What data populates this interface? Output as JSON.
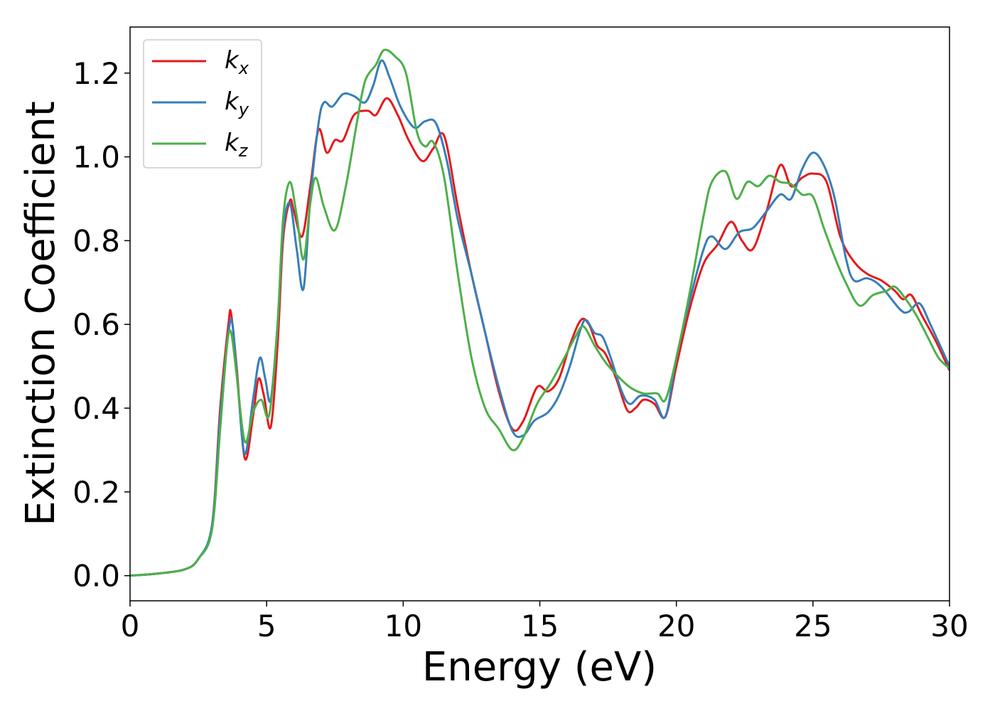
{
  "chart_data": {
    "type": "line",
    "title": "",
    "xlabel": "Energy (eV)",
    "ylabel": "Extinction Coefficient",
    "xlim": [
      0,
      30
    ],
    "ylim": [
      -0.06,
      1.31
    ],
    "xticks": [
      0,
      5,
      10,
      15,
      20,
      25,
      30
    ],
    "yticks": [
      0.0,
      0.2,
      0.4,
      0.6,
      0.8,
      1.0,
      1.2
    ],
    "xtick_labels": [
      "0",
      "5",
      "10",
      "15",
      "20",
      "25",
      "30"
    ],
    "ytick_labels": [
      "0.0",
      "0.2",
      "0.4",
      "0.6",
      "0.8",
      "1.0",
      "1.2"
    ],
    "grid": false,
    "legend": "top-left",
    "series": [
      {
        "name": "k_x",
        "label_main": "k",
        "label_sub": "x",
        "color": "#e41a1c",
        "points": [
          [
            0,
            0
          ],
          [
            1,
            0.005
          ],
          [
            2,
            0.015
          ],
          [
            2.5,
            0.04
          ],
          [
            3,
            0.12
          ],
          [
            3.3,
            0.4
          ],
          [
            3.6,
            0.6
          ],
          [
            3.7,
            0.625
          ],
          [
            3.9,
            0.5
          ],
          [
            4.2,
            0.28
          ],
          [
            4.5,
            0.38
          ],
          [
            4.7,
            0.47
          ],
          [
            4.9,
            0.43
          ],
          [
            5.15,
            0.355
          ],
          [
            5.4,
            0.55
          ],
          [
            5.6,
            0.8
          ],
          [
            5.85,
            0.895
          ],
          [
            6,
            0.87
          ],
          [
            6.3,
            0.81
          ],
          [
            6.6,
            0.93
          ],
          [
            6.9,
            1.065
          ],
          [
            7.2,
            1.01
          ],
          [
            7.5,
            1.04
          ],
          [
            7.8,
            1.04
          ],
          [
            8.2,
            1.1
          ],
          [
            8.7,
            1.11
          ],
          [
            9,
            1.1
          ],
          [
            9.4,
            1.14
          ],
          [
            9.8,
            1.1
          ],
          [
            10.2,
            1.04
          ],
          [
            10.7,
            0.99
          ],
          [
            11.1,
            1.02
          ],
          [
            11.5,
            1.05
          ],
          [
            12,
            0.88
          ],
          [
            12.5,
            0.72
          ],
          [
            13,
            0.58
          ],
          [
            13.5,
            0.44
          ],
          [
            14,
            0.35
          ],
          [
            14.4,
            0.37
          ],
          [
            14.9,
            0.45
          ],
          [
            15.3,
            0.44
          ],
          [
            15.7,
            0.47
          ],
          [
            16.1,
            0.55
          ],
          [
            16.5,
            0.61
          ],
          [
            16.8,
            0.6
          ],
          [
            17.1,
            0.55
          ],
          [
            17.4,
            0.53
          ],
          [
            17.8,
            0.47
          ],
          [
            18.2,
            0.395
          ],
          [
            18.5,
            0.4
          ],
          [
            18.8,
            0.42
          ],
          [
            19.2,
            0.41
          ],
          [
            19.6,
            0.38
          ],
          [
            20,
            0.5
          ],
          [
            20.5,
            0.64
          ],
          [
            21,
            0.745
          ],
          [
            21.5,
            0.79
          ],
          [
            22,
            0.845
          ],
          [
            22.4,
            0.8
          ],
          [
            22.8,
            0.78
          ],
          [
            23.3,
            0.87
          ],
          [
            23.8,
            0.98
          ],
          [
            24.2,
            0.93
          ],
          [
            24.6,
            0.95
          ],
          [
            25,
            0.96
          ],
          [
            25.5,
            0.94
          ],
          [
            26,
            0.81
          ],
          [
            26.5,
            0.75
          ],
          [
            27,
            0.72
          ],
          [
            27.5,
            0.705
          ],
          [
            28,
            0.68
          ],
          [
            28.3,
            0.66
          ],
          [
            28.6,
            0.67
          ],
          [
            29,
            0.62
          ],
          [
            29.5,
            0.56
          ],
          [
            30,
            0.49
          ]
        ]
      },
      {
        "name": "k_y",
        "label_main": "k",
        "label_sub": "y",
        "color": "#377eb8",
        "points": [
          [
            0,
            0
          ],
          [
            1,
            0.005
          ],
          [
            2,
            0.015
          ],
          [
            2.5,
            0.04
          ],
          [
            3,
            0.12
          ],
          [
            3.3,
            0.38
          ],
          [
            3.6,
            0.58
          ],
          [
            3.75,
            0.6
          ],
          [
            3.95,
            0.45
          ],
          [
            4.2,
            0.29
          ],
          [
            4.5,
            0.42
          ],
          [
            4.75,
            0.52
          ],
          [
            4.95,
            0.47
          ],
          [
            5.15,
            0.42
          ],
          [
            5.4,
            0.6
          ],
          [
            5.6,
            0.82
          ],
          [
            5.85,
            0.89
          ],
          [
            6.1,
            0.78
          ],
          [
            6.35,
            0.685
          ],
          [
            6.6,
            0.9
          ],
          [
            6.9,
            1.08
          ],
          [
            7.1,
            1.13
          ],
          [
            7.4,
            1.12
          ],
          [
            7.8,
            1.15
          ],
          [
            8.2,
            1.145
          ],
          [
            8.6,
            1.13
          ],
          [
            8.9,
            1.17
          ],
          [
            9.2,
            1.23
          ],
          [
            9.5,
            1.19
          ],
          [
            9.9,
            1.12
          ],
          [
            10.4,
            1.07
          ],
          [
            10.8,
            1.085
          ],
          [
            11.2,
            1.08
          ],
          [
            11.6,
            0.99
          ],
          [
            12,
            0.85
          ],
          [
            12.5,
            0.72
          ],
          [
            13,
            0.58
          ],
          [
            13.5,
            0.45
          ],
          [
            14,
            0.345
          ],
          [
            14.4,
            0.335
          ],
          [
            14.8,
            0.37
          ],
          [
            15.3,
            0.39
          ],
          [
            15.7,
            0.43
          ],
          [
            16.1,
            0.5
          ],
          [
            16.5,
            0.59
          ],
          [
            16.7,
            0.61
          ],
          [
            17,
            0.58
          ],
          [
            17.3,
            0.57
          ],
          [
            17.6,
            0.52
          ],
          [
            18,
            0.44
          ],
          [
            18.3,
            0.41
          ],
          [
            18.7,
            0.43
          ],
          [
            19.2,
            0.42
          ],
          [
            19.6,
            0.38
          ],
          [
            20,
            0.52
          ],
          [
            20.5,
            0.66
          ],
          [
            21,
            0.78
          ],
          [
            21.3,
            0.81
          ],
          [
            21.8,
            0.78
          ],
          [
            22.3,
            0.82
          ],
          [
            22.8,
            0.83
          ],
          [
            23.3,
            0.87
          ],
          [
            23.8,
            0.91
          ],
          [
            24.2,
            0.9
          ],
          [
            24.6,
            0.97
          ],
          [
            25,
            1.01
          ],
          [
            25.4,
            0.98
          ],
          [
            25.8,
            0.9
          ],
          [
            26.2,
            0.76
          ],
          [
            26.5,
            0.705
          ],
          [
            27,
            0.71
          ],
          [
            27.5,
            0.69
          ],
          [
            28.2,
            0.635
          ],
          [
            28.5,
            0.63
          ],
          [
            28.9,
            0.65
          ],
          [
            29.3,
            0.6
          ],
          [
            30,
            0.5
          ]
        ]
      },
      {
        "name": "k_z",
        "label_main": "k",
        "label_sub": "z",
        "color": "#4daf4a",
        "points": [
          [
            0,
            0
          ],
          [
            1,
            0.005
          ],
          [
            2,
            0.015
          ],
          [
            2.5,
            0.04
          ],
          [
            3,
            0.11
          ],
          [
            3.3,
            0.35
          ],
          [
            3.55,
            0.55
          ],
          [
            3.7,
            0.58
          ],
          [
            3.9,
            0.48
          ],
          [
            4.2,
            0.32
          ],
          [
            4.5,
            0.39
          ],
          [
            4.8,
            0.42
          ],
          [
            5.1,
            0.385
          ],
          [
            5.4,
            0.6
          ],
          [
            5.6,
            0.85
          ],
          [
            5.85,
            0.94
          ],
          [
            6.1,
            0.86
          ],
          [
            6.35,
            0.755
          ],
          [
            6.6,
            0.89
          ],
          [
            6.8,
            0.95
          ],
          [
            7.1,
            0.88
          ],
          [
            7.5,
            0.825
          ],
          [
            7.9,
            0.93
          ],
          [
            8.3,
            1.08
          ],
          [
            8.6,
            1.18
          ],
          [
            9,
            1.22
          ],
          [
            9.3,
            1.255
          ],
          [
            9.7,
            1.24
          ],
          [
            10.1,
            1.2
          ],
          [
            10.5,
            1.06
          ],
          [
            10.8,
            1.025
          ],
          [
            11.1,
            1.035
          ],
          [
            11.5,
            0.95
          ],
          [
            12,
            0.72
          ],
          [
            12.5,
            0.52
          ],
          [
            13,
            0.4
          ],
          [
            13.5,
            0.35
          ],
          [
            14,
            0.3
          ],
          [
            14.4,
            0.33
          ],
          [
            14.9,
            0.41
          ],
          [
            15.4,
            0.46
          ],
          [
            15.9,
            0.52
          ],
          [
            16.3,
            0.57
          ],
          [
            16.6,
            0.595
          ],
          [
            17,
            0.55
          ],
          [
            17.4,
            0.51
          ],
          [
            17.8,
            0.48
          ],
          [
            18.3,
            0.45
          ],
          [
            18.8,
            0.435
          ],
          [
            19.3,
            0.435
          ],
          [
            19.6,
            0.42
          ],
          [
            20,
            0.52
          ],
          [
            20.5,
            0.68
          ],
          [
            21,
            0.86
          ],
          [
            21.3,
            0.94
          ],
          [
            21.8,
            0.965
          ],
          [
            22.2,
            0.9
          ],
          [
            22.6,
            0.94
          ],
          [
            23,
            0.93
          ],
          [
            23.4,
            0.955
          ],
          [
            23.8,
            0.94
          ],
          [
            24.2,
            0.935
          ],
          [
            24.6,
            0.91
          ],
          [
            25,
            0.905
          ],
          [
            25.4,
            0.83
          ],
          [
            25.8,
            0.76
          ],
          [
            26.2,
            0.7
          ],
          [
            26.7,
            0.645
          ],
          [
            27.2,
            0.67
          ],
          [
            27.7,
            0.68
          ],
          [
            28,
            0.69
          ],
          [
            28.4,
            0.66
          ],
          [
            28.8,
            0.62
          ],
          [
            29.2,
            0.57
          ],
          [
            29.6,
            0.52
          ],
          [
            30,
            0.495
          ]
        ]
      }
    ]
  }
}
